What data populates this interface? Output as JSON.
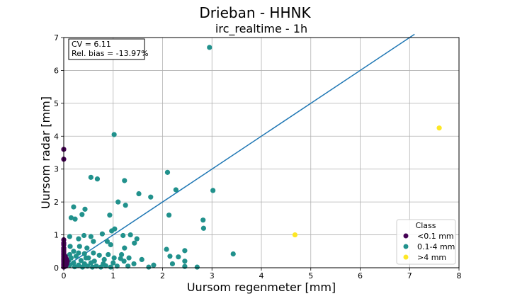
{
  "chart_data": {
    "type": "scatter",
    "suptitle": "Drieban - HHNK",
    "title": "irc_realtime - 1h",
    "xlabel": "Uursom regenmeter [mm]",
    "ylabel": "Uursom radar [mm]",
    "xlim": [
      0,
      8
    ],
    "ylim": [
      0,
      7
    ],
    "xticks": [
      "0",
      "1",
      "2",
      "3",
      "4",
      "5",
      "6",
      "7",
      "8"
    ],
    "yticks": [
      "0",
      "1",
      "2",
      "3",
      "4",
      "5",
      "6",
      "7"
    ],
    "grid": true,
    "annotation": {
      "line1": "CV = 6.11",
      "line2": "Rel. bias = -13.97%"
    },
    "reference_line": {
      "x": [
        0,
        7.1
      ],
      "y": [
        0,
        7.1
      ],
      "color": "#1f77b4"
    },
    "legend": {
      "title": "Class",
      "placement": "lower-right",
      "entries": [
        {
          "label": "<0.1 mm",
          "color": "#440154"
        },
        {
          "label": "0.1-4 mm",
          "color": "#21918c"
        },
        {
          "label": ">4 mm",
          "color": "#fde725"
        }
      ]
    },
    "series": [
      {
        "name": "<0.1 mm",
        "color": "#440154",
        "points": [
          [
            0,
            3.6
          ],
          [
            0,
            3.3
          ],
          [
            0,
            0.85
          ],
          [
            0,
            0.75
          ],
          [
            0,
            0.7
          ],
          [
            0,
            0.6
          ],
          [
            0,
            0.55
          ],
          [
            0,
            0.5
          ],
          [
            0,
            0.45
          ],
          [
            0,
            0.4
          ],
          [
            0,
            0.35
          ],
          [
            0,
            0.3
          ],
          [
            0,
            0.25
          ],
          [
            0,
            0.2
          ],
          [
            0,
            0.15
          ],
          [
            0,
            0.1
          ],
          [
            0,
            0.05
          ],
          [
            0,
            0.02
          ],
          [
            0.02,
            0.15
          ],
          [
            0.03,
            0.35
          ],
          [
            0.04,
            0.05
          ],
          [
            0.05,
            0.28
          ],
          [
            0.06,
            0.12
          ],
          [
            0.07,
            0.2
          ]
        ]
      },
      {
        "name": "0.1-4 mm",
        "color": "#21918c",
        "points": [
          [
            2.95,
            6.7
          ],
          [
            1.02,
            4.05
          ],
          [
            2.1,
            2.9
          ],
          [
            0.55,
            2.75
          ],
          [
            0.68,
            2.7
          ],
          [
            1.23,
            2.65
          ],
          [
            2.27,
            2.37
          ],
          [
            3.02,
            2.35
          ],
          [
            1.52,
            2.25
          ],
          [
            1.76,
            2.15
          ],
          [
            1.1,
            2.0
          ],
          [
            1.25,
            1.9
          ],
          [
            0.2,
            1.85
          ],
          [
            0.43,
            1.78
          ],
          [
            0.37,
            1.62
          ],
          [
            0.93,
            1.6
          ],
          [
            2.13,
            1.6
          ],
          [
            0.15,
            1.52
          ],
          [
            0.23,
            1.48
          ],
          [
            2.82,
            1.45
          ],
          [
            2.83,
            1.2
          ],
          [
            1.03,
            1.18
          ],
          [
            0.97,
            1.12
          ],
          [
            0.78,
            1.03
          ],
          [
            0.41,
            0.98
          ],
          [
            1.2,
            0.98
          ],
          [
            1.35,
            1.0
          ],
          [
            0.12,
            0.95
          ],
          [
            0.3,
            0.88
          ],
          [
            0.55,
            0.95
          ],
          [
            1.48,
            0.88
          ],
          [
            0.6,
            0.8
          ],
          [
            0.88,
            0.8
          ],
          [
            1.43,
            0.75
          ],
          [
            0.95,
            0.7
          ],
          [
            0.13,
            0.65
          ],
          [
            0.47,
            0.6
          ],
          [
            1.23,
            0.6
          ],
          [
            2.08,
            0.56
          ],
          [
            2.45,
            0.52
          ],
          [
            0.2,
            0.5
          ],
          [
            0.3,
            0.45
          ],
          [
            0.42,
            0.43
          ],
          [
            0.72,
            0.38
          ],
          [
            1.17,
            0.4
          ],
          [
            3.43,
            0.42
          ],
          [
            2.15,
            0.35
          ],
          [
            2.32,
            0.33
          ],
          [
            0.15,
            0.3
          ],
          [
            0.25,
            0.35
          ],
          [
            0.5,
            0.3
          ],
          [
            1.02,
            0.3
          ],
          [
            1.15,
            0.28
          ],
          [
            1.32,
            0.3
          ],
          [
            1.58,
            0.25
          ],
          [
            0.1,
            0.22
          ],
          [
            0.35,
            0.22
          ],
          [
            0.62,
            0.2
          ],
          [
            0.82,
            0.25
          ],
          [
            1.22,
            0.2
          ],
          [
            2.45,
            0.2
          ],
          [
            0.2,
            0.15
          ],
          [
            0.42,
            0.12
          ],
          [
            0.55,
            0.15
          ],
          [
            1.42,
            0.12
          ],
          [
            2.2,
            0.12
          ],
          [
            0.12,
            0.08
          ],
          [
            0.3,
            0.08
          ],
          [
            0.48,
            0.05
          ],
          [
            0.66,
            0.05
          ],
          [
            0.85,
            0.06
          ],
          [
            1.08,
            0.05
          ],
          [
            1.3,
            0.05
          ],
          [
            1.82,
            0.08
          ],
          [
            2.45,
            0.04
          ],
          [
            0.22,
            0.03
          ],
          [
            0.38,
            0.02
          ],
          [
            0.58,
            0.02
          ],
          [
            0.75,
            0.02
          ],
          [
            0.95,
            0.02
          ],
          [
            1.72,
            0.02
          ],
          [
            2.7,
            0.02
          ],
          [
            0.12,
            0.4
          ],
          [
            0.32,
            0.65
          ],
          [
            0.6,
            0.45
          ],
          [
            0.8,
            0.12
          ],
          [
            0.45,
            0.3
          ],
          [
            0.9,
            0.4
          ],
          [
            1.0,
            0.15
          ]
        ]
      },
      {
        "name": ">4 mm",
        "color": "#fde725",
        "points": [
          [
            7.6,
            4.25
          ],
          [
            4.68,
            1.0
          ]
        ]
      }
    ]
  }
}
